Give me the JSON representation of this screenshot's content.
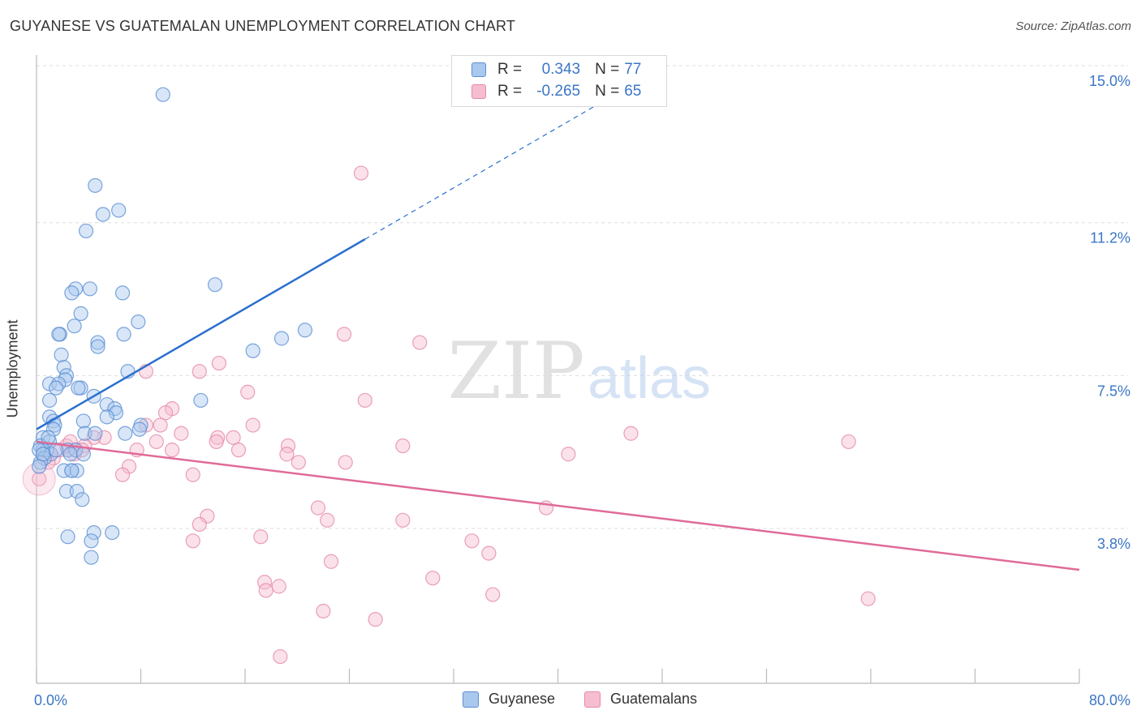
{
  "header": {
    "title": "GUYANESE VS GUATEMALAN UNEMPLOYMENT CORRELATION CHART",
    "source": "Source: ZipAtlas.com"
  },
  "watermark": {
    "zip": "ZIP",
    "atlas": "atlas"
  },
  "legend": {
    "rows": [
      {
        "r_label": "R =",
        "r_value": "0.343",
        "n_label": "N =",
        "n_value": "77"
      },
      {
        "r_label": "R =",
        "r_value": "-0.265",
        "n_label": "N =",
        "n_value": "65"
      }
    ]
  },
  "bottom_legend": {
    "series1": "Guyanese",
    "series2": "Guatemalans"
  },
  "colors": {
    "blue_fill": "#a9c8ee",
    "blue_stroke": "#5b8fd4",
    "blue_line": "#2a6fcf",
    "pink_fill": "#f6bdd0",
    "pink_stroke": "#e48aa9",
    "pink_line": "#e06a98",
    "tick_label": "#3b76c6",
    "grid": "#dddddd"
  },
  "chart_data": {
    "type": "scatter",
    "title": "GUYANESE VS GUATEMALAN UNEMPLOYMENT CORRELATION CHART",
    "xlabel": "",
    "ylabel": "Unemployment",
    "xlim": [
      0,
      80
    ],
    "ylim": [
      0,
      15.5
    ],
    "x_tick_labels": [
      "0.0%",
      "80.0%"
    ],
    "y_ticks": [
      3.8,
      7.5,
      11.2,
      15.0
    ],
    "y_tick_labels": [
      "3.8%",
      "7.5%",
      "11.2%",
      "15.0%"
    ],
    "grid": true,
    "series": [
      {
        "name": "Guyanese",
        "color": "#5b8fd4",
        "r": "0.343",
        "n": "77",
        "trend": {
          "x0": 0,
          "y0": 6.2,
          "x1": 25.2,
          "y1": 10.8,
          "dash_to_x": 46,
          "dash_to_y": 14.6
        },
        "points": [
          [
            9.7,
            14.3
          ],
          [
            4.5,
            12.1
          ],
          [
            6.3,
            11.5
          ],
          [
            5.1,
            11.4
          ],
          [
            3.8,
            11.0
          ],
          [
            13.7,
            9.7
          ],
          [
            4.1,
            9.6
          ],
          [
            3.0,
            9.6
          ],
          [
            6.6,
            9.5
          ],
          [
            2.7,
            9.5
          ],
          [
            3.4,
            9.0
          ],
          [
            7.8,
            8.8
          ],
          [
            2.9,
            8.7
          ],
          [
            20.6,
            8.6
          ],
          [
            1.8,
            8.5
          ],
          [
            6.7,
            8.5
          ],
          [
            18.8,
            8.4
          ],
          [
            1.7,
            8.5
          ],
          [
            4.7,
            8.3
          ],
          [
            4.7,
            8.2
          ],
          [
            16.6,
            8.1
          ],
          [
            1.9,
            8.0
          ],
          [
            2.1,
            7.7
          ],
          [
            7.0,
            7.6
          ],
          [
            2.3,
            7.5
          ],
          [
            2.2,
            7.4
          ],
          [
            1.0,
            7.3
          ],
          [
            1.7,
            7.3
          ],
          [
            3.4,
            7.2
          ],
          [
            3.2,
            7.2
          ],
          [
            1.5,
            7.2
          ],
          [
            4.4,
            7.0
          ],
          [
            1.0,
            6.9
          ],
          [
            12.6,
            6.9
          ],
          [
            5.4,
            6.8
          ],
          [
            6.0,
            6.7
          ],
          [
            6.1,
            6.6
          ],
          [
            1.0,
            6.5
          ],
          [
            5.4,
            6.5
          ],
          [
            3.6,
            6.4
          ],
          [
            1.3,
            6.4
          ],
          [
            1.4,
            6.3
          ],
          [
            8.0,
            6.3
          ],
          [
            7.9,
            6.2
          ],
          [
            1.3,
            6.2
          ],
          [
            3.7,
            6.1
          ],
          [
            4.5,
            6.1
          ],
          [
            6.8,
            6.1
          ],
          [
            0.5,
            6.0
          ],
          [
            1.0,
            5.9
          ],
          [
            0.3,
            5.8
          ],
          [
            0.8,
            5.7
          ],
          [
            0.5,
            5.7
          ],
          [
            0.2,
            5.7
          ],
          [
            2.4,
            5.7
          ],
          [
            3.0,
            5.7
          ],
          [
            1.1,
            5.6
          ],
          [
            2.6,
            5.6
          ],
          [
            3.6,
            5.6
          ],
          [
            0.6,
            5.5
          ],
          [
            0.3,
            5.4
          ],
          [
            0.2,
            5.3
          ],
          [
            2.7,
            5.2
          ],
          [
            2.1,
            5.2
          ],
          [
            3.1,
            5.2
          ],
          [
            2.7,
            5.2
          ],
          [
            2.3,
            4.7
          ],
          [
            3.1,
            4.7
          ],
          [
            3.5,
            4.5
          ],
          [
            5.8,
            3.7
          ],
          [
            4.4,
            3.7
          ],
          [
            2.4,
            3.6
          ],
          [
            4.2,
            3.5
          ],
          [
            4.2,
            3.1
          ],
          [
            0.5,
            5.6
          ],
          [
            1.5,
            5.7
          ],
          [
            0.9,
            6.0
          ]
        ]
      },
      {
        "name": "Guatemalans",
        "color": "#e48aa9",
        "r": "-0.265",
        "n": "65",
        "trend": {
          "x0": 0,
          "y0": 5.9,
          "x1": 80,
          "y1": 2.8
        },
        "points": [
          [
            24.9,
            12.4
          ],
          [
            23.6,
            8.5
          ],
          [
            29.4,
            8.3
          ],
          [
            14.0,
            7.8
          ],
          [
            12.5,
            7.6
          ],
          [
            8.4,
            7.6
          ],
          [
            16.2,
            7.1
          ],
          [
            25.2,
            6.9
          ],
          [
            10.4,
            6.7
          ],
          [
            9.9,
            6.6
          ],
          [
            16.6,
            6.3
          ],
          [
            9.5,
            6.3
          ],
          [
            8.4,
            6.3
          ],
          [
            13.9,
            6.0
          ],
          [
            45.6,
            6.1
          ],
          [
            11.1,
            6.1
          ],
          [
            5.2,
            6.0
          ],
          [
            4.4,
            6.0
          ],
          [
            15.1,
            6.0
          ],
          [
            9.2,
            5.9
          ],
          [
            13.8,
            5.9
          ],
          [
            19.3,
            5.8
          ],
          [
            62.3,
            5.9
          ],
          [
            28.1,
            5.8
          ],
          [
            3.0,
            5.7
          ],
          [
            3.7,
            5.8
          ],
          [
            2.3,
            5.8
          ],
          [
            7.7,
            5.7
          ],
          [
            15.5,
            5.7
          ],
          [
            10.4,
            5.7
          ],
          [
            19.2,
            5.6
          ],
          [
            40.8,
            5.6
          ],
          [
            3.5,
            5.7
          ],
          [
            2.9,
            5.6
          ],
          [
            20.1,
            5.4
          ],
          [
            23.7,
            5.4
          ],
          [
            7.1,
            5.3
          ],
          [
            6.6,
            5.1
          ],
          [
            12.0,
            5.1
          ],
          [
            1.3,
            5.5
          ],
          [
            0.9,
            5.4
          ],
          [
            0.6,
            5.6
          ],
          [
            0.2,
            5.0
          ],
          [
            21.6,
            4.3
          ],
          [
            39.1,
            4.3
          ],
          [
            13.1,
            4.1
          ],
          [
            22.3,
            4.0
          ],
          [
            28.1,
            4.0
          ],
          [
            12.5,
            3.9
          ],
          [
            17.2,
            3.6
          ],
          [
            12.0,
            3.5
          ],
          [
            33.4,
            3.5
          ],
          [
            34.7,
            3.2
          ],
          [
            22.6,
            3.0
          ],
          [
            30.4,
            2.6
          ],
          [
            17.5,
            2.5
          ],
          [
            18.6,
            2.4
          ],
          [
            17.6,
            2.3
          ],
          [
            35.0,
            2.2
          ],
          [
            63.8,
            2.1
          ],
          [
            22.0,
            1.8
          ],
          [
            26.0,
            1.6
          ],
          [
            18.7,
            0.7
          ],
          [
            1.8,
            5.7
          ],
          [
            2.6,
            5.9
          ]
        ]
      }
    ]
  }
}
